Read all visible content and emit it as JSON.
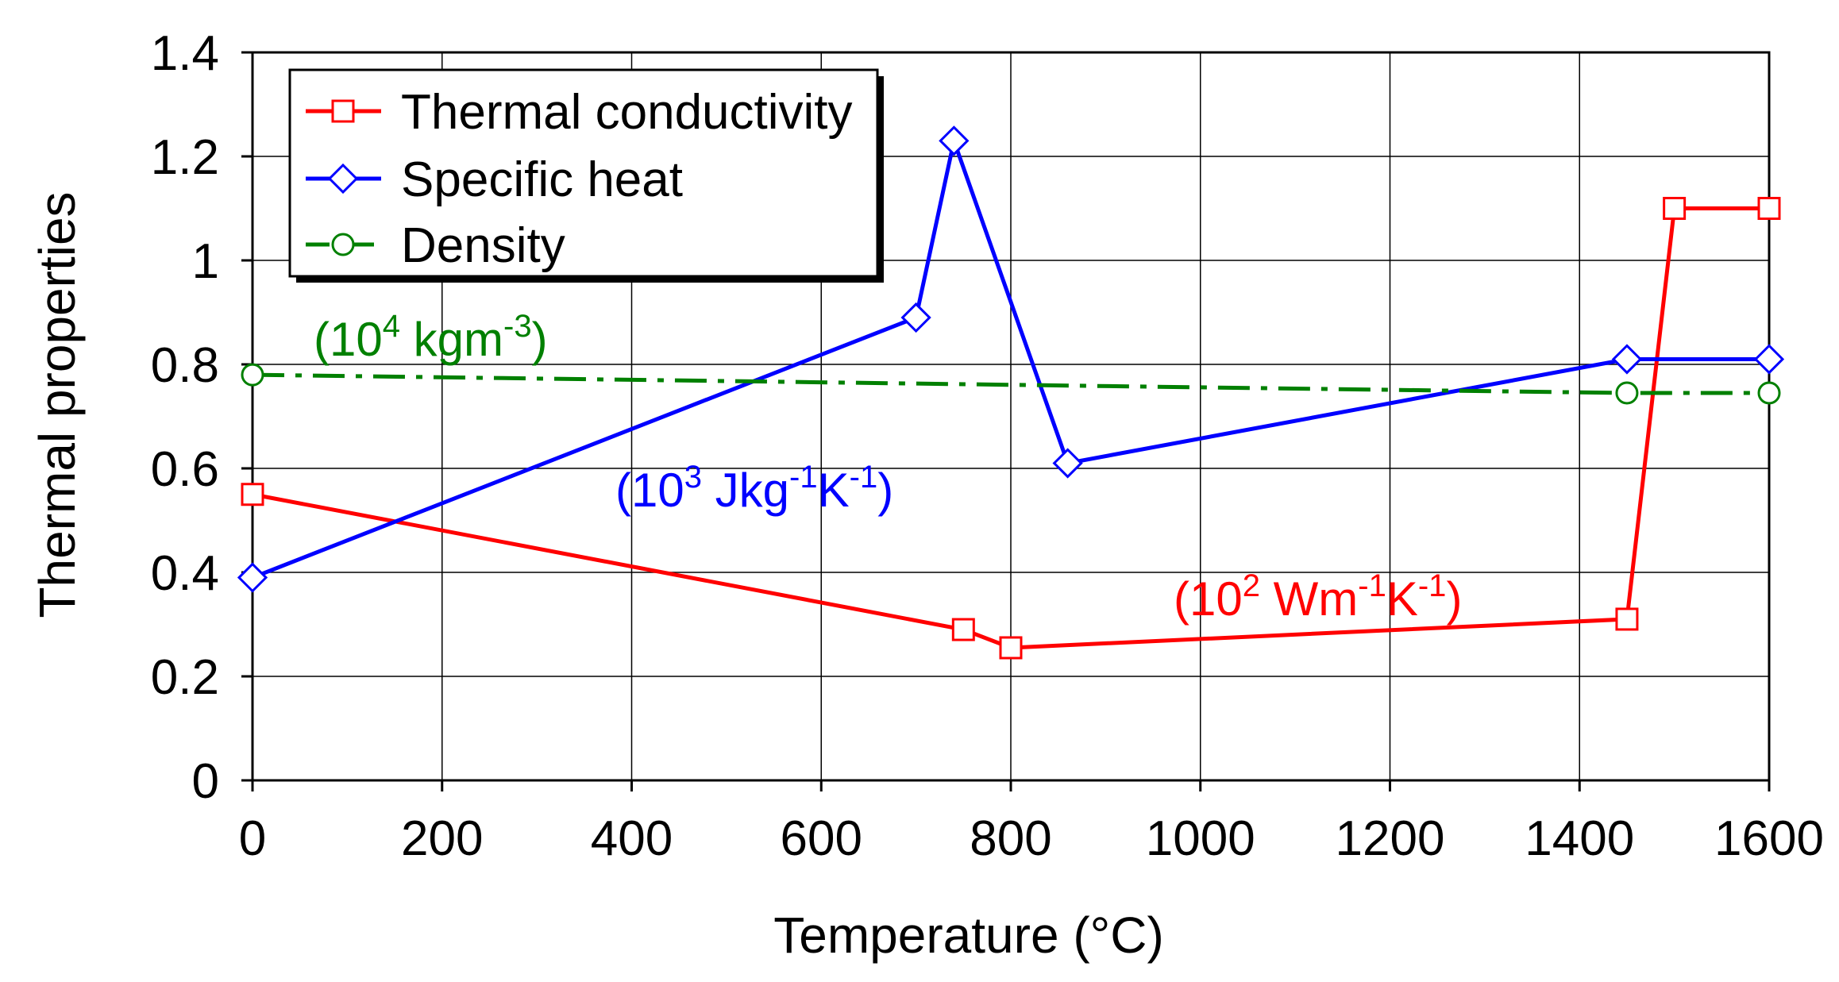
{
  "chart_data": {
    "type": "line",
    "title": "",
    "xlabel": "Temperature (°C)",
    "ylabel": "Thermal properties",
    "xlim": [
      0,
      1600
    ],
    "ylim": [
      0,
      1.4
    ],
    "xticks": [
      0,
      200,
      400,
      600,
      800,
      1000,
      1200,
      1400,
      1600
    ],
    "xtick_labels": [
      "0",
      "200",
      "400",
      "600",
      "800",
      "1000",
      "1200",
      "1400",
      "1600"
    ],
    "yticks": [
      0,
      0.2,
      0.4,
      0.6,
      0.8,
      1,
      1.2,
      1.4
    ],
    "ytick_labels": [
      "0",
      "0.2",
      "0.4",
      "0.6",
      "0.8",
      "1",
      "1.2",
      "1.4"
    ],
    "grid": true,
    "legend_position": "top-left",
    "series": [
      {
        "name": "Thermal conductivity",
        "color": "#ff0000",
        "marker": "square",
        "line_style": "solid",
        "x": [
          0,
          750,
          800,
          1450,
          1500,
          1600
        ],
        "y": [
          0.55,
          0.29,
          0.255,
          0.31,
          1.1,
          1.1
        ]
      },
      {
        "name": "Specific heat",
        "color": "#0000ff",
        "marker": "diamond",
        "line_style": "solid",
        "x": [
          0,
          700,
          740,
          860,
          1450,
          1600
        ],
        "y": [
          0.39,
          0.89,
          1.23,
          0.61,
          0.81,
          0.81
        ]
      },
      {
        "name": "Density",
        "color": "#008000",
        "marker": "circle",
        "line_style": "dash-dot",
        "x": [
          0,
          1450,
          1600
        ],
        "y": [
          0.78,
          0.745,
          0.745
        ]
      }
    ],
    "annotations": [
      {
        "series": "Density",
        "base": "(10",
        "exp1": "4",
        "mid": " kgm",
        "exp2": "-3",
        "end": ")",
        "color": "#008000"
      },
      {
        "series": "Specific heat",
        "base": "(10",
        "exp1": "3",
        "mid": " Jkg",
        "exp2": "-1",
        "mid2": "K",
        "exp3": "-1",
        "end": ")",
        "color": "#0000ff"
      },
      {
        "series": "Thermal conductivity",
        "base": "(10",
        "exp1": "2",
        "mid": " Wm",
        "exp2": "-1",
        "mid2": "K",
        "exp3": "-1",
        "end": ")",
        "color": "#ff0000"
      }
    ]
  }
}
